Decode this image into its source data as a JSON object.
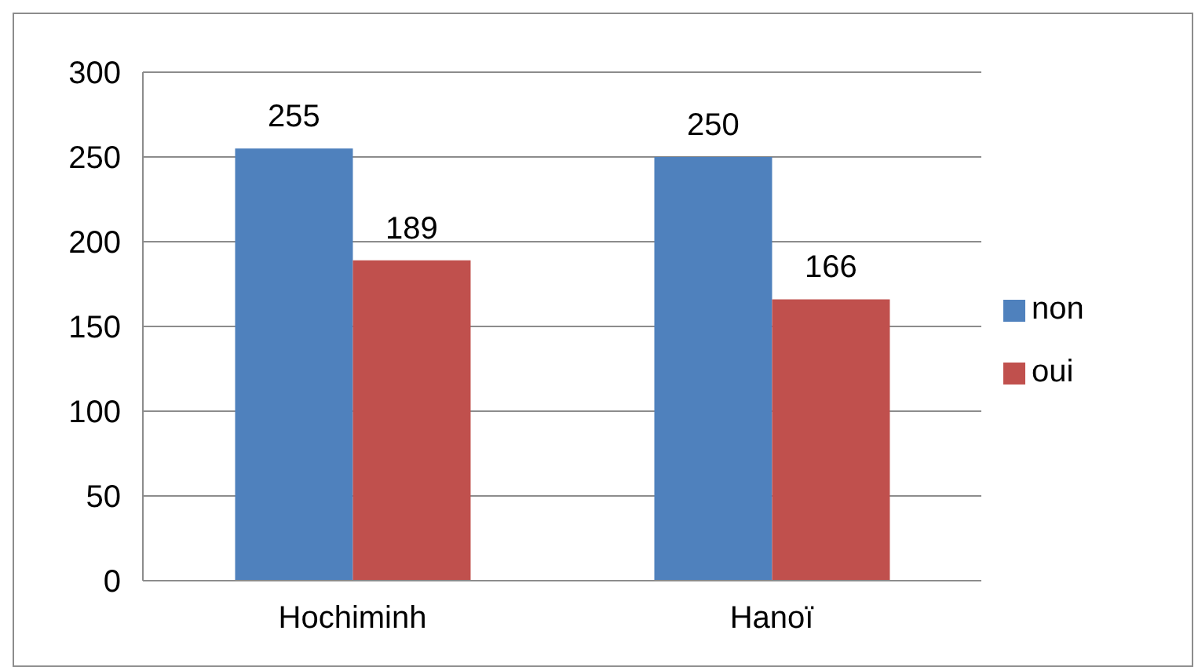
{
  "chart_data": {
    "type": "bar",
    "categories": [
      "Hochiminh",
      "Hanoï"
    ],
    "series": [
      {
        "name": "non",
        "color": "#4f81bd",
        "values": [
          255,
          250
        ]
      },
      {
        "name": "oui",
        "color": "#c0504d",
        "values": [
          189,
          166
        ]
      }
    ],
    "ylim": [
      0,
      300
    ],
    "yticks": [
      0,
      50,
      100,
      150,
      200,
      250,
      300
    ],
    "grid": "y",
    "legend": "right",
    "data_labels": true
  }
}
